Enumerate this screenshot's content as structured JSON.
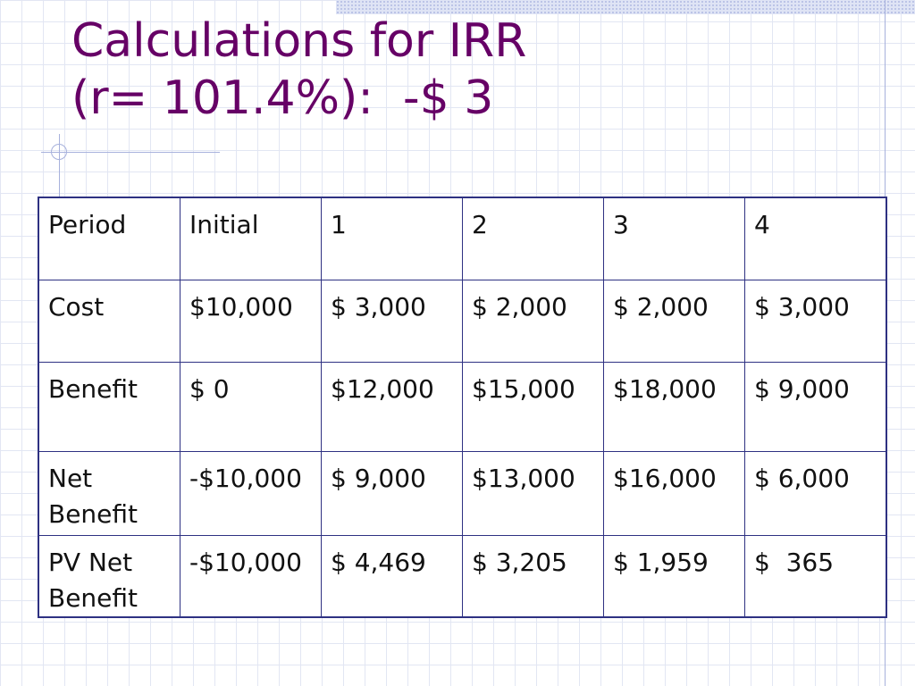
{
  "slide": {
    "title_line1": "Calculations for IRR",
    "title_line2": "(r= 101.4%):  -$ 3",
    "table": {
      "rows": [
        {
          "label": "Period",
          "values": [
            "Initial",
            "1",
            "2",
            "3",
            "4"
          ]
        },
        {
          "label": "Cost",
          "values": [
            "$10,000",
            "$ 3,000",
            "$ 2,000",
            "$ 2,000",
            "$ 3,000"
          ]
        },
        {
          "label": "Benefit",
          "values": [
            "$ 0",
            "$12,000",
            "$15,000",
            "$18,000",
            "$ 9,000"
          ]
        },
        {
          "label": "Net Benefit",
          "values": [
            "-$10,000",
            "$ 9,000",
            "$13,000",
            "$16,000",
            "$ 6,000"
          ]
        },
        {
          "label": "PV Net Benefit",
          "values": [
            "-$10,000",
            "$ 4,469",
            "$ 3,205",
            "$ 1,959",
            "$  365"
          ]
        }
      ]
    }
  },
  "colors": {
    "title": "#660066",
    "table_border": "#2e3182",
    "grid": "#e2e6f3"
  }
}
